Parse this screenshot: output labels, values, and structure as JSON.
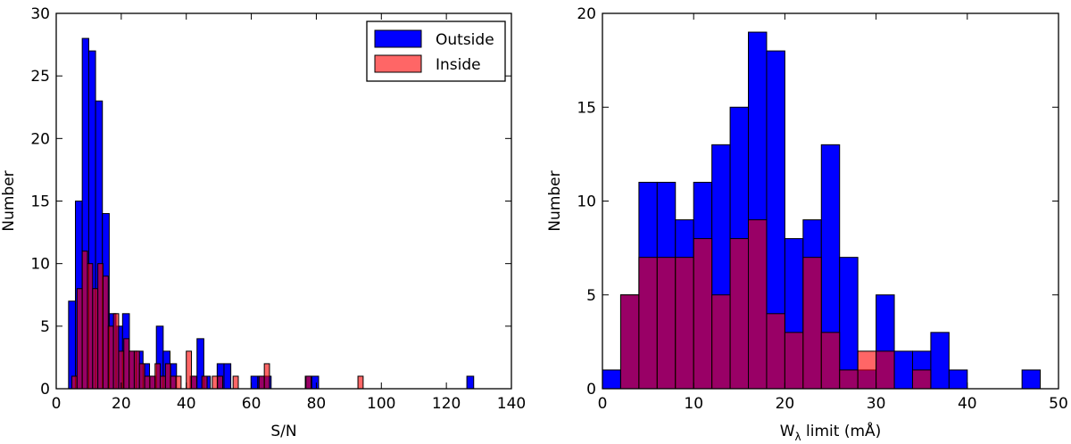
{
  "colors": {
    "outside": "#0000ff",
    "inside": "#ff0000",
    "inside_opacity": 0.6,
    "edge": "#000000"
  },
  "chart_data": [
    {
      "type": "bar",
      "subtype": "histogram",
      "xlabel": "S/N",
      "ylabel": "Number",
      "xlim": [
        0,
        140
      ],
      "ylim": [
        0,
        30
      ],
      "xticks": [
        0,
        20,
        40,
        60,
        80,
        100,
        120,
        140
      ],
      "yticks": [
        0,
        5,
        10,
        15,
        20,
        25,
        30
      ],
      "legend": {
        "placement": "top-right",
        "entries": [
          "Outside",
          "Inside"
        ]
      },
      "series": [
        {
          "name": "Outside",
          "bins": [
            {
              "x0": 3.8,
              "x1": 5.9,
              "count": 7
            },
            {
              "x0": 5.9,
              "x1": 8.0,
              "count": 15
            },
            {
              "x0": 8.0,
              "x1": 10.0,
              "count": 28
            },
            {
              "x0": 10.0,
              "x1": 12.1,
              "count": 27
            },
            {
              "x0": 12.1,
              "x1": 14.2,
              "count": 23
            },
            {
              "x0": 14.2,
              "x1": 16.3,
              "count": 14
            },
            {
              "x0": 16.3,
              "x1": 18.4,
              "count": 6
            },
            {
              "x0": 18.4,
              "x1": 20.4,
              "count": 5
            },
            {
              "x0": 20.4,
              "x1": 22.5,
              "count": 6
            },
            {
              "x0": 22.5,
              "x1": 24.6,
              "count": 3
            },
            {
              "x0": 24.6,
              "x1": 26.7,
              "count": 3
            },
            {
              "x0": 26.7,
              "x1": 28.7,
              "count": 2
            },
            {
              "x0": 28.7,
              "x1": 30.8,
              "count": 1
            },
            {
              "x0": 30.8,
              "x1": 32.9,
              "count": 5
            },
            {
              "x0": 32.9,
              "x1": 35.0,
              "count": 3
            },
            {
              "x0": 35.0,
              "x1": 37.0,
              "count": 2
            },
            {
              "x0": 41.2,
              "x1": 43.3,
              "count": 1
            },
            {
              "x0": 43.3,
              "x1": 45.4,
              "count": 4
            },
            {
              "x0": 45.4,
              "x1": 47.4,
              "count": 1
            },
            {
              "x0": 49.5,
              "x1": 51.6,
              "count": 2
            },
            {
              "x0": 51.6,
              "x1": 53.7,
              "count": 2
            },
            {
              "x0": 59.9,
              "x1": 62.0,
              "count": 1
            },
            {
              "x0": 62.0,
              "x1": 64.1,
              "count": 1
            },
            {
              "x0": 64.1,
              "x1": 66.1,
              "count": 1
            },
            {
              "x0": 76.6,
              "x1": 78.6,
              "count": 1
            },
            {
              "x0": 78.6,
              "x1": 80.7,
              "count": 1
            },
            {
              "x0": 126.3,
              "x1": 128.4,
              "count": 1
            }
          ]
        },
        {
          "name": "Inside",
          "bins": [
            {
              "x0": 4.8,
              "x1": 6.4,
              "count": 1
            },
            {
              "x0": 6.4,
              "x1": 8.0,
              "count": 8
            },
            {
              "x0": 8.0,
              "x1": 9.6,
              "count": 11
            },
            {
              "x0": 9.6,
              "x1": 11.2,
              "count": 10
            },
            {
              "x0": 11.2,
              "x1": 12.8,
              "count": 8
            },
            {
              "x0": 12.8,
              "x1": 14.4,
              "count": 10
            },
            {
              "x0": 14.4,
              "x1": 16.0,
              "count": 9
            },
            {
              "x0": 16.0,
              "x1": 17.6,
              "count": 5
            },
            {
              "x0": 17.6,
              "x1": 19.2,
              "count": 6
            },
            {
              "x0": 19.2,
              "x1": 20.8,
              "count": 3
            },
            {
              "x0": 20.8,
              "x1": 22.4,
              "count": 4
            },
            {
              "x0": 22.4,
              "x1": 24.0,
              "count": 3
            },
            {
              "x0": 24.0,
              "x1": 25.6,
              "count": 3
            },
            {
              "x0": 25.6,
              "x1": 27.2,
              "count": 2
            },
            {
              "x0": 27.2,
              "x1": 28.8,
              "count": 1
            },
            {
              "x0": 28.8,
              "x1": 30.4,
              "count": 1
            },
            {
              "x0": 30.4,
              "x1": 32.0,
              "count": 2
            },
            {
              "x0": 32.0,
              "x1": 33.6,
              "count": 1
            },
            {
              "x0": 33.6,
              "x1": 35.2,
              "count": 2
            },
            {
              "x0": 35.2,
              "x1": 36.8,
              "count": 1
            },
            {
              "x0": 36.8,
              "x1": 38.4,
              "count": 1
            },
            {
              "x0": 40.0,
              "x1": 41.6,
              "count": 3
            },
            {
              "x0": 41.6,
              "x1": 43.2,
              "count": 1
            },
            {
              "x0": 44.8,
              "x1": 46.4,
              "count": 1
            },
            {
              "x0": 48.0,
              "x1": 49.6,
              "count": 1
            },
            {
              "x0": 49.6,
              "x1": 51.2,
              "count": 1
            },
            {
              "x0": 54.4,
              "x1": 56.0,
              "count": 1
            },
            {
              "x0": 62.4,
              "x1": 64.0,
              "count": 1
            },
            {
              "x0": 64.0,
              "x1": 65.6,
              "count": 2
            },
            {
              "x0": 76.8,
              "x1": 78.4,
              "count": 1
            },
            {
              "x0": 92.8,
              "x1": 94.4,
              "count": 1
            }
          ]
        }
      ]
    },
    {
      "type": "bar",
      "subtype": "histogram",
      "xlabel": "W",
      "xlabel_sub": "λ",
      "xlabel_rest": " limit (mÅ)",
      "ylabel": "Number",
      "xlim": [
        0,
        50
      ],
      "ylim": [
        0,
        20
      ],
      "xticks": [
        0,
        10,
        20,
        30,
        40,
        50
      ],
      "yticks": [
        0,
        5,
        10,
        15,
        20
      ],
      "series": [
        {
          "name": "Outside",
          "bins": [
            {
              "x0": 0,
              "x1": 2,
              "count": 1
            },
            {
              "x0": 2,
              "x1": 4,
              "count": 5
            },
            {
              "x0": 4,
              "x1": 6,
              "count": 11
            },
            {
              "x0": 6,
              "x1": 8,
              "count": 11
            },
            {
              "x0": 8,
              "x1": 10,
              "count": 9
            },
            {
              "x0": 10,
              "x1": 12,
              "count": 11
            },
            {
              "x0": 12,
              "x1": 14,
              "count": 13
            },
            {
              "x0": 14,
              "x1": 16,
              "count": 15
            },
            {
              "x0": 16,
              "x1": 18,
              "count": 19
            },
            {
              "x0": 18,
              "x1": 20,
              "count": 18
            },
            {
              "x0": 20,
              "x1": 22,
              "count": 8
            },
            {
              "x0": 22,
              "x1": 24,
              "count": 9
            },
            {
              "x0": 24,
              "x1": 26,
              "count": 13
            },
            {
              "x0": 26,
              "x1": 28,
              "count": 7
            },
            {
              "x0": 28,
              "x1": 30,
              "count": 1
            },
            {
              "x0": 30,
              "x1": 32,
              "count": 5
            },
            {
              "x0": 32,
              "x1": 34,
              "count": 2
            },
            {
              "x0": 34,
              "x1": 36,
              "count": 2
            },
            {
              "x0": 36,
              "x1": 38,
              "count": 3
            },
            {
              "x0": 38,
              "x1": 40,
              "count": 1
            },
            {
              "x0": 40,
              "x1": 42,
              "count": 0
            },
            {
              "x0": 42,
              "x1": 44,
              "count": 0
            },
            {
              "x0": 44,
              "x1": 46,
              "count": 0
            },
            {
              "x0": 46,
              "x1": 48,
              "count": 1
            }
          ]
        },
        {
          "name": "Inside",
          "bins": [
            {
              "x0": 2,
              "x1": 4,
              "count": 5
            },
            {
              "x0": 4,
              "x1": 6,
              "count": 7
            },
            {
              "x0": 6,
              "x1": 8,
              "count": 7
            },
            {
              "x0": 8,
              "x1": 10,
              "count": 7
            },
            {
              "x0": 10,
              "x1": 12,
              "count": 8
            },
            {
              "x0": 12,
              "x1": 14,
              "count": 5
            },
            {
              "x0": 14,
              "x1": 16,
              "count": 8
            },
            {
              "x0": 16,
              "x1": 18,
              "count": 9
            },
            {
              "x0": 18,
              "x1": 20,
              "count": 4
            },
            {
              "x0": 20,
              "x1": 22,
              "count": 3
            },
            {
              "x0": 22,
              "x1": 24,
              "count": 7
            },
            {
              "x0": 24,
              "x1": 26,
              "count": 3
            },
            {
              "x0": 26,
              "x1": 28,
              "count": 1
            },
            {
              "x0": 28,
              "x1": 30,
              "count": 2
            },
            {
              "x0": 30,
              "x1": 32,
              "count": 2
            },
            {
              "x0": 32,
              "x1": 34,
              "count": 0
            },
            {
              "x0": 34,
              "x1": 36,
              "count": 1
            }
          ]
        }
      ]
    }
  ]
}
